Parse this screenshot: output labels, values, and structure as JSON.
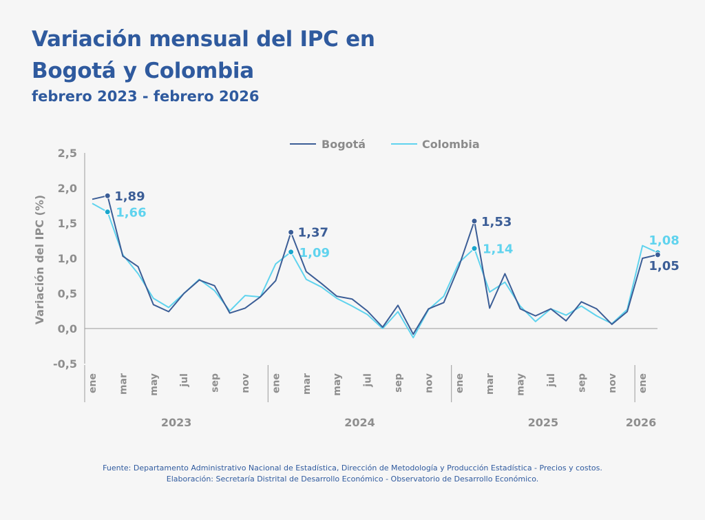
{
  "header": {
    "title_line1": "Variación mensual del IPC en",
    "title_line2": "Bogotá y Colombia",
    "subtitle": "febrero 2023 - febrero 2026"
  },
  "footer": {
    "source": "Fuente: Departamento Administrativo Nacional de Estadística, Dirección de Metodología y Producción Estadística - Precios y costos.",
    "credit": "Elaboración: Secretaría Distrital de Desarrollo Económico - Observatorio de Desarrollo Económico."
  },
  "colors": {
    "bogota": "#3b5d96",
    "colombia": "#5fd3ee",
    "text": "#2f5a9e",
    "axis": "#9a9a9a",
    "tick": "#8e8e8e"
  },
  "chart_data": {
    "type": "line",
    "ylabel": "Variación del IPC (%)",
    "ylim": [
      -0.5,
      2.5
    ],
    "yticks": [
      "2,5",
      "2,0",
      "1,5",
      "1,0",
      "0,5",
      "0,0",
      "-0,5"
    ],
    "ytick_values": [
      2.5,
      2.0,
      1.5,
      1.0,
      0.5,
      0.0,
      -0.5
    ],
    "grid": false,
    "legend": "top-center",
    "x": [
      "2023-01",
      "2023-02",
      "2023-03",
      "2023-04",
      "2023-05",
      "2023-06",
      "2023-07",
      "2023-08",
      "2023-09",
      "2023-10",
      "2023-11",
      "2023-12",
      "2024-01",
      "2024-02",
      "2024-03",
      "2024-04",
      "2024-05",
      "2024-06",
      "2024-07",
      "2024-08",
      "2024-09",
      "2024-10",
      "2024-11",
      "2024-12",
      "2025-01",
      "2025-02",
      "2025-03",
      "2025-04",
      "2025-05",
      "2025-06",
      "2025-07",
      "2025-08",
      "2025-09",
      "2025-10",
      "2025-11",
      "2025-12",
      "2026-01",
      "2026-02"
    ],
    "month_ticks": [
      "ene",
      "mar",
      "may",
      "jul",
      "sep",
      "nov",
      "ene",
      "mar",
      "may",
      "jul",
      "sep",
      "nov",
      "ene",
      "mar",
      "may",
      "jul",
      "sep",
      "nov",
      "ene"
    ],
    "month_tick_index": [
      0,
      2,
      4,
      6,
      8,
      10,
      12,
      14,
      16,
      18,
      20,
      22,
      24,
      26,
      28,
      30,
      32,
      34,
      36
    ],
    "years": [
      {
        "label": "2023",
        "start": 0,
        "end": 11
      },
      {
        "label": "2024",
        "start": 12,
        "end": 23
      },
      {
        "label": "2025",
        "start": 24,
        "end": 35
      },
      {
        "label": "2026",
        "start": 36,
        "end": 37
      }
    ],
    "series": [
      {
        "name": "Bogotá",
        "values": [
          1.84,
          1.89,
          1.03,
          0.88,
          0.34,
          0.24,
          0.5,
          0.69,
          0.61,
          0.22,
          0.29,
          0.45,
          0.68,
          1.37,
          0.81,
          0.64,
          0.46,
          0.42,
          0.25,
          0.02,
          0.33,
          -0.08,
          0.28,
          0.37,
          0.89,
          1.53,
          0.29,
          0.78,
          0.28,
          0.18,
          0.28,
          0.11,
          0.38,
          0.28,
          0.06,
          0.24,
          1.0,
          1.05
        ]
      },
      {
        "name": "Colombia",
        "values": [
          1.78,
          1.66,
          1.05,
          0.78,
          0.43,
          0.3,
          0.5,
          0.7,
          0.54,
          0.25,
          0.47,
          0.45,
          0.92,
          1.09,
          0.7,
          0.59,
          0.43,
          0.32,
          0.2,
          0.0,
          0.24,
          -0.13,
          0.27,
          0.46,
          0.94,
          1.14,
          0.52,
          0.66,
          0.32,
          0.1,
          0.28,
          0.19,
          0.32,
          0.18,
          0.07,
          0.27,
          1.18,
          1.08
        ]
      }
    ],
    "annotations": [
      {
        "series": 0,
        "index": 1,
        "label": "1,89"
      },
      {
        "series": 1,
        "index": 1,
        "label": "1,66"
      },
      {
        "series": 0,
        "index": 13,
        "label": "1,37"
      },
      {
        "series": 1,
        "index": 13,
        "label": "1,09"
      },
      {
        "series": 0,
        "index": 25,
        "label": "1,53"
      },
      {
        "series": 1,
        "index": 25,
        "label": "1,14"
      },
      {
        "series": 1,
        "index": 37,
        "label": "1,08"
      },
      {
        "series": 0,
        "index": 37,
        "label": "1,05"
      }
    ]
  }
}
